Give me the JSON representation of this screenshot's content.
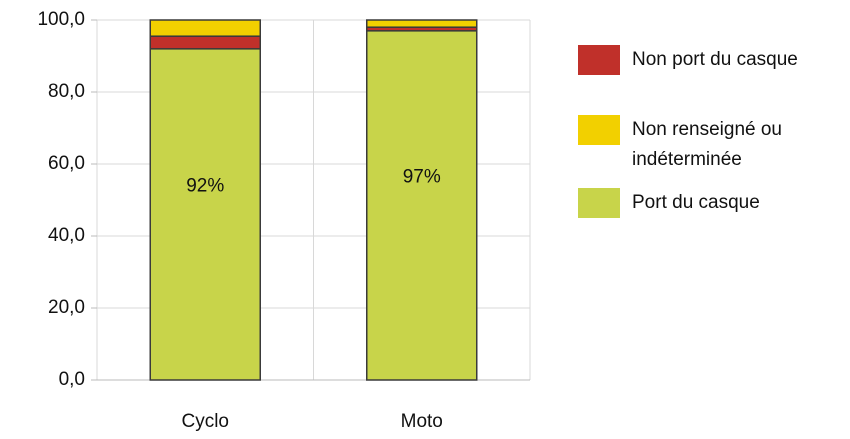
{
  "chart_data": {
    "type": "bar",
    "stacked": true,
    "categories": [
      "Cyclo",
      "Moto"
    ],
    "series": [
      {
        "name": "Port du casque",
        "color": "#c8d44a",
        "values": [
          92,
          97
        ],
        "value_labels": [
          "92%",
          "97%"
        ]
      },
      {
        "name": "Non port du casque",
        "color": "#c0302a",
        "values": [
          3.5,
          1
        ]
      },
      {
        "name": "Non renseigné ou indéterminée",
        "color": "#f2d000",
        "values": [
          4.5,
          2
        ]
      }
    ],
    "legend_order": [
      1,
      2,
      0
    ],
    "ylim": [
      0,
      100
    ],
    "yticks": [
      {
        "value": 0,
        "label": "0,0"
      },
      {
        "value": 20,
        "label": "20,0"
      },
      {
        "value": 40,
        "label": "40,0"
      },
      {
        "value": 60,
        "label": "60,0"
      },
      {
        "value": 80,
        "label": "80,0"
      },
      {
        "value": 100,
        "label": "100,0"
      }
    ],
    "grid": true
  }
}
